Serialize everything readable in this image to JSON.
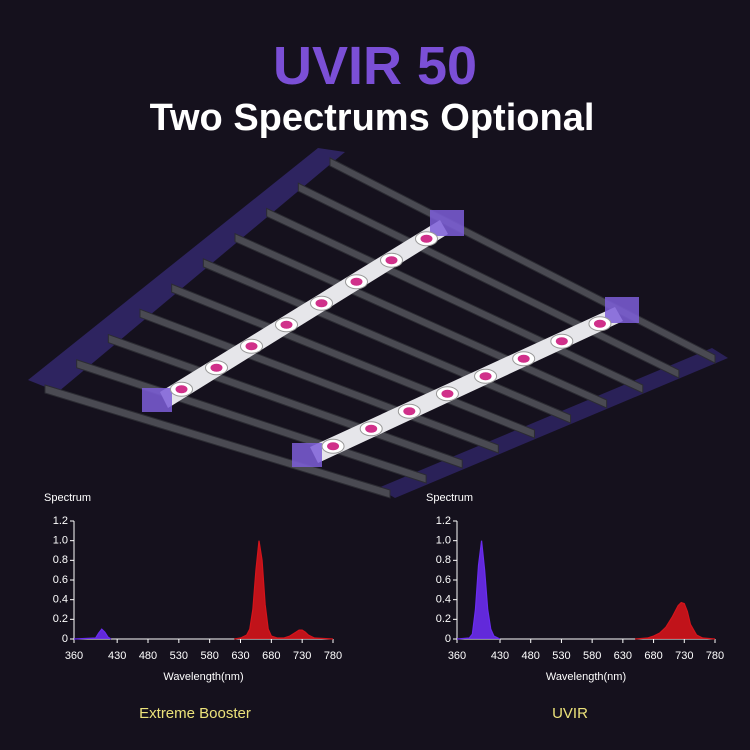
{
  "header": {
    "title": "UVIR 50",
    "subtitle": "Two Spectrums Optional"
  },
  "chart_data": [
    {
      "type": "area",
      "title": "Extreme Booster",
      "y_label": "Spectrum",
      "x_label": "Wavelength(nm)",
      "xlim": [
        360,
        780
      ],
      "ylim": [
        0,
        1.2
      ],
      "xticks": [
        360,
        430,
        480,
        530,
        580,
        630,
        680,
        730,
        780
      ],
      "yticks": [
        0,
        0.2,
        0.4,
        0.6,
        0.8,
        {
          "value": 1,
          "label": "1.0"
        },
        1.2
      ],
      "x": [
        360,
        395,
        400,
        405,
        410,
        415,
        420,
        620,
        630,
        640,
        645,
        650,
        655,
        660,
        665,
        670,
        675,
        680,
        690,
        700,
        710,
        720,
        725,
        730,
        735,
        740,
        750,
        780
      ],
      "series": [
        {
          "color": "#6a2cf0",
          "values": [
            0,
            0.01,
            0.06,
            0.1,
            0.07,
            0.02,
            0,
            null,
            null,
            null,
            null,
            null,
            null,
            null,
            null,
            null,
            null,
            null,
            null,
            null,
            null,
            null,
            null,
            null,
            null,
            null,
            null,
            null
          ]
        },
        {
          "color": "#d4141b",
          "values": [
            null,
            null,
            null,
            null,
            null,
            null,
            null,
            0,
            0.01,
            0.04,
            0.1,
            0.3,
            0.7,
            1.0,
            0.8,
            0.35,
            0.1,
            0.03,
            0.01,
            0.01,
            0.03,
            0.07,
            0.09,
            0.09,
            0.07,
            0.04,
            0.01,
            0
          ]
        }
      ]
    },
    {
      "type": "area",
      "title": "UVIR",
      "y_label": "Spectrum",
      "x_label": "Wavelength(nm)",
      "xlim": [
        360,
        780
      ],
      "ylim": [
        0,
        1.2
      ],
      "xticks": [
        360,
        430,
        480,
        530,
        580,
        630,
        680,
        730,
        780
      ],
      "yticks": [
        0,
        0.2,
        0.4,
        0.6,
        0.8,
        {
          "value": 1,
          "label": "1.0"
        },
        1.2
      ],
      "x": [
        360,
        380,
        385,
        390,
        395,
        400,
        405,
        410,
        415,
        420,
        430,
        650,
        670,
        680,
        690,
        700,
        710,
        720,
        725,
        730,
        735,
        740,
        750,
        760,
        780
      ],
      "series": [
        {
          "color": "#6a2cf0",
          "values": [
            0,
            0.01,
            0.05,
            0.3,
            0.75,
            1.0,
            0.7,
            0.3,
            0.1,
            0.03,
            0,
            null,
            null,
            null,
            null,
            null,
            null,
            null,
            null,
            null,
            null,
            null,
            null,
            null,
            null
          ]
        },
        {
          "color": "#d4141b",
          "values": [
            null,
            null,
            null,
            null,
            null,
            null,
            null,
            null,
            null,
            null,
            null,
            0,
            0.01,
            0.03,
            0.06,
            0.12,
            0.22,
            0.34,
            0.37,
            0.36,
            0.28,
            0.15,
            0.04,
            0.01,
            0
          ]
        }
      ]
    }
  ]
}
